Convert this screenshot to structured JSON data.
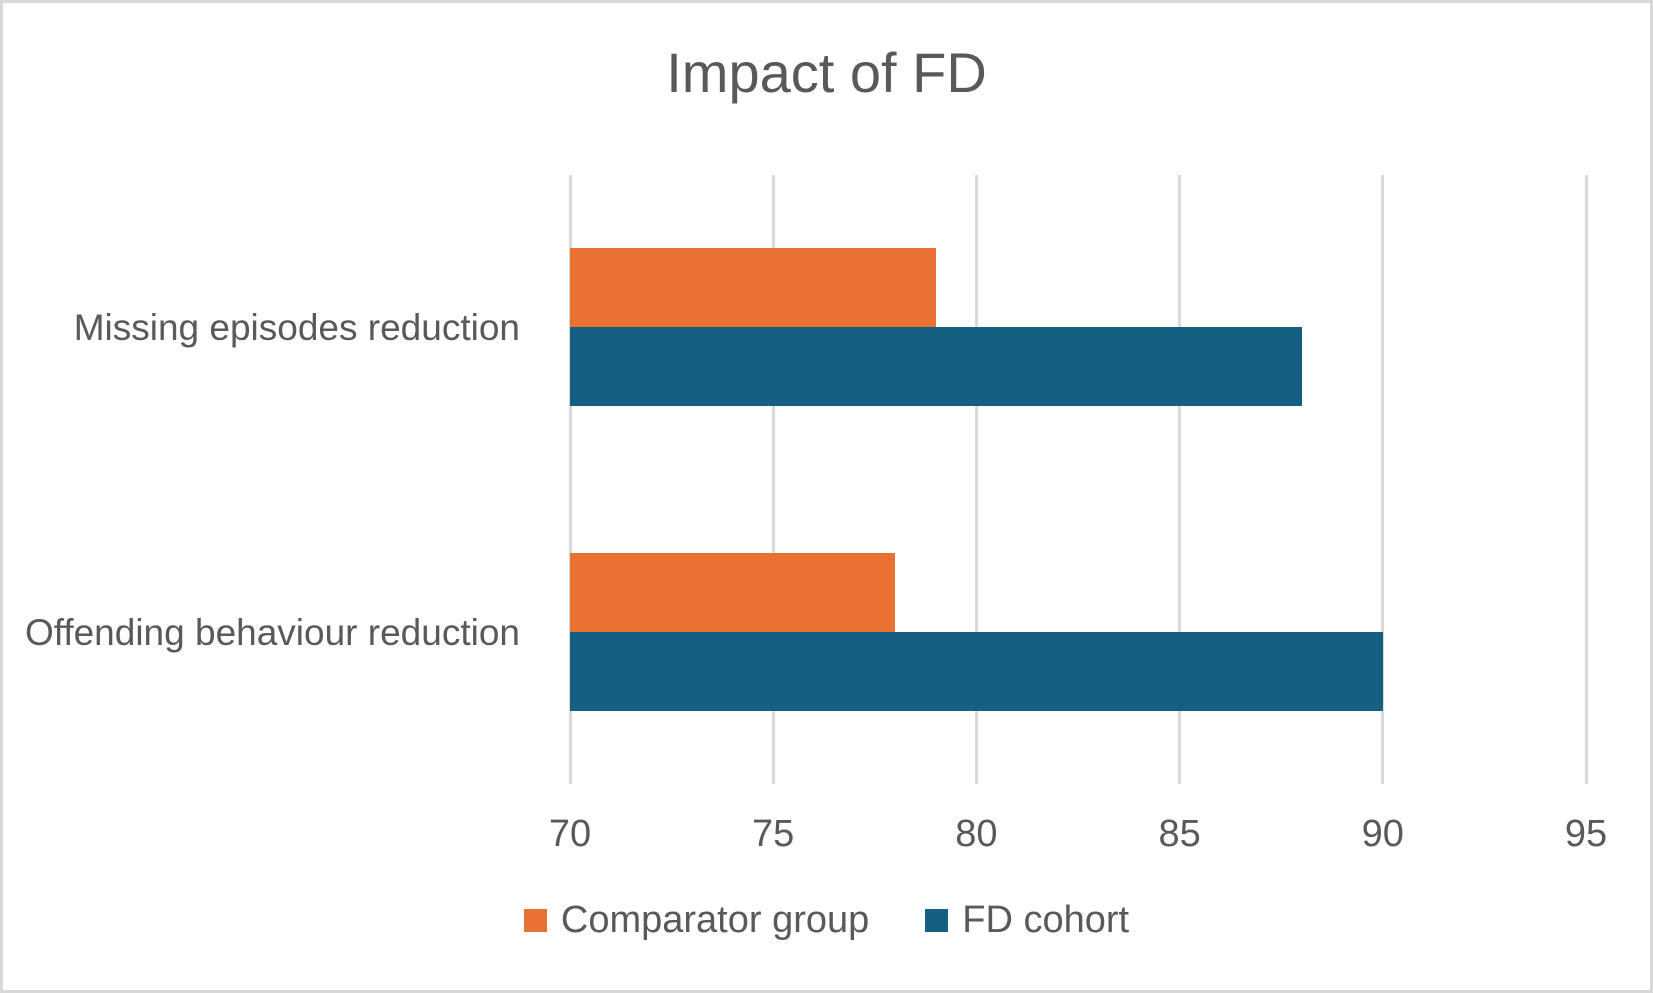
{
  "title": "Impact of FD",
  "colors": {
    "title_text": "#595959",
    "axis_text": "#595959",
    "gridline": "#D9D9D9",
    "frame_border": "#D8D8D8",
    "background": "#FFFFFF",
    "comparator_group": "#E97132",
    "fd_cohort": "#156082"
  },
  "chart_data": {
    "type": "bar",
    "orientation": "horizontal",
    "title": "Impact of FD",
    "categories": [
      "Missing episodes reduction",
      "Offending behaviour reduction"
    ],
    "series": [
      {
        "name": "Comparator group",
        "color": "#E97132",
        "values": [
          79,
          78
        ]
      },
      {
        "name": "FD cohort",
        "color": "#156082",
        "values": [
          88,
          90
        ]
      }
    ],
    "x_axis": {
      "min": 70,
      "max": 95,
      "tick_interval": 5,
      "ticks": [
        70,
        75,
        80,
        85,
        90,
        95
      ]
    },
    "ylabel": "",
    "xlabel": "",
    "grid": true,
    "legend_position": "bottom"
  }
}
